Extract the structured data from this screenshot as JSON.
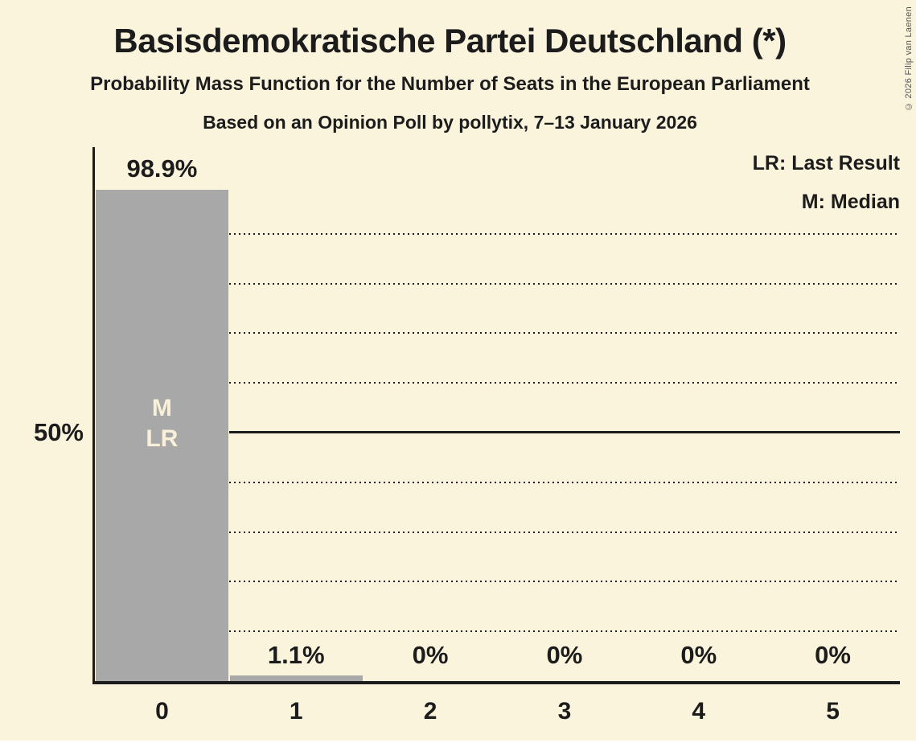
{
  "header": {
    "title": "Basisdemokratische Partei Deutschland (*)",
    "subtitle": "Probability Mass Function for the Number of Seats in the European Parliament",
    "poll_info": "Based on an Opinion Poll by pollytix, 7–13 January 2026"
  },
  "legend": {
    "lr": "LR: Last Result",
    "m": "M: Median"
  },
  "copyright": "© 2026 Filip van Laenen",
  "chart_data": {
    "type": "bar",
    "title": "Basisdemokratische Partei Deutschland (*)",
    "subtitle": "Probability Mass Function for the Number of Seats in the European Parliament",
    "annotation_note": "Based on an Opinion Poll by pollytix, 7–13 January 2026",
    "xlabel": "",
    "ylabel": "",
    "categories": [
      "0",
      "1",
      "2",
      "3",
      "4",
      "5"
    ],
    "values": [
      98.9,
      1.1,
      0,
      0,
      0,
      0
    ],
    "value_labels": [
      "98.9%",
      "1.1%",
      "0%",
      "0%",
      "0%",
      "0%"
    ],
    "bar_annotations": [
      [
        "M",
        "LR"
      ],
      [],
      [],
      [],
      [],
      []
    ],
    "y_axis_label_50": "50%",
    "ylim": [
      0,
      100
    ],
    "gridline_percents": [
      10,
      20,
      30,
      40,
      60,
      70,
      80,
      90
    ],
    "median_line_percent": 50,
    "grid": "dotted horizontal, right of first bar only",
    "legend_position": "top-right",
    "legend_entries": [
      "LR: Last Result",
      "M: Median"
    ],
    "colors": {
      "background": "#fbf4dc",
      "bar": "#a8a8a8",
      "ink": "#1c1c1c",
      "bar_label_text": "#f8f0d8",
      "copyright_text": "#555555"
    }
  }
}
